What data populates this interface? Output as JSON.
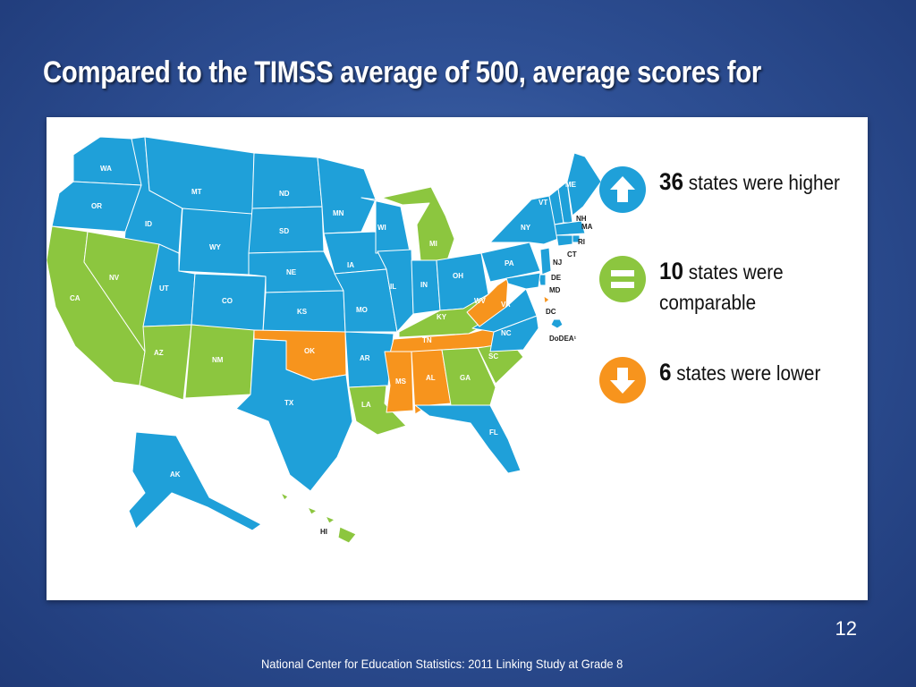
{
  "slide": {
    "title": "Compared to the TIMSS average of 500, average scores for",
    "slide_number": "12",
    "footer": "National Center for Education Statistics: 2011 Linking Study at Grade 8"
  },
  "colors": {
    "higher": "#1fa0d9",
    "comparable": "#8cc63f",
    "lower": "#f7941d",
    "background": "#2f5196"
  },
  "legend": {
    "higher": {
      "count": "36",
      "label": "states were higher",
      "icon": "up-arrow-icon"
    },
    "comparable": {
      "count": "10",
      "label_line1": "states were",
      "label_line2": "comparable",
      "icon": "equals-icon"
    },
    "lower": {
      "count": "6",
      "label": "states were lower",
      "icon": "down-arrow-icon"
    }
  },
  "map": {
    "labels": {
      "WA": "WA",
      "OR": "OR",
      "CA": "CA",
      "ID": "ID",
      "NV": "NV",
      "MT": "MT",
      "WY": "WY",
      "UT": "UT",
      "AZ": "AZ",
      "CO": "CO",
      "NM": "NM",
      "ND": "ND",
      "SD": "SD",
      "NE": "NE",
      "KS": "KS",
      "OK": "OK",
      "TX": "TX",
      "MN": "MN",
      "IA": "IA",
      "MO": "MO",
      "AR": "AR",
      "LA": "LA",
      "WI": "WI",
      "IL": "IL",
      "MI": "MI",
      "IN": "IN",
      "OH": "OH",
      "KY": "KY",
      "TN": "TN",
      "MS": "MS",
      "AL": "AL",
      "GA": "GA",
      "FL": "FL",
      "SC": "SC",
      "NC": "NC",
      "VA": "VA",
      "WV": "WV",
      "PA": "PA",
      "NY": "NY",
      "VT": "VT",
      "ME": "ME",
      "NH": "NH",
      "MA": "MA",
      "RI": "RI",
      "CT": "CT",
      "NJ": "NJ",
      "DE": "DE",
      "MD": "MD",
      "DC": "DC",
      "AK": "AK",
      "HI": "HI",
      "DoDEA": "DoDEA¹"
    },
    "state_status": {
      "WA": "higher",
      "OR": "higher",
      "CA": "comparable",
      "ID": "higher",
      "NV": "comparable",
      "MT": "higher",
      "WY": "higher",
      "UT": "higher",
      "AZ": "comparable",
      "CO": "higher",
      "NM": "comparable",
      "ND": "higher",
      "SD": "higher",
      "NE": "higher",
      "KS": "higher",
      "OK": "lower",
      "TX": "higher",
      "MN": "higher",
      "IA": "higher",
      "MO": "higher",
      "AR": "higher",
      "LA": "comparable",
      "WI": "higher",
      "IL": "higher",
      "MI": "comparable",
      "IN": "higher",
      "OH": "higher",
      "KY": "comparable",
      "TN": "lower",
      "MS": "lower",
      "AL": "lower",
      "GA": "comparable",
      "FL": "higher",
      "SC": "comparable",
      "NC": "higher",
      "VA": "higher",
      "WV": "lower",
      "PA": "higher",
      "NY": "higher",
      "VT": "higher",
      "ME": "higher",
      "NH": "higher",
      "MA": "higher",
      "RI": "higher",
      "CT": "higher",
      "NJ": "higher",
      "DE": "higher",
      "MD": "higher",
      "DC": "lower",
      "AK": "higher",
      "HI": "comparable",
      "DoDEA": "higher"
    }
  }
}
